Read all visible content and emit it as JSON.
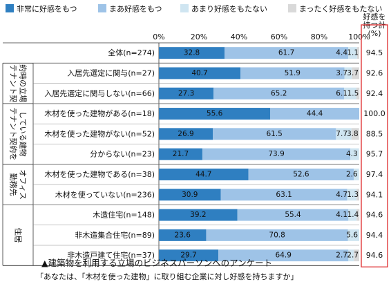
{
  "legend": [
    {
      "label": "非常に好感をもつ",
      "color": "#2f7fc1"
    },
    {
      "label": "まあ好感をもつ",
      "color": "#9ec3e7"
    },
    {
      "label": "あまり好感をもたない",
      "color": "#cfe5f1"
    },
    {
      "label": "まったく好感をもたない",
      "color": "#d9d9d9"
    }
  ],
  "sum_header": [
    "好感を",
    "持つ計",
    "(%)"
  ],
  "caption": {
    "title": "▲建築物を利用する立場のビジネスパーソンへのアンケート",
    "question": "「あなたは、「木材を使った建物」に取り組む企業に対し好感を持ちますか」"
  },
  "colors": {
    "very": "#2f7fc1",
    "somewhat": "#9ec3e7",
    "not_much": "#cfe5f1",
    "not_at_all": "#d9d9d9",
    "sum_box": "#e0383a"
  },
  "groups": [
    {
      "label": [
        "テナント契",
        "約時の立場"
      ],
      "from": 1,
      "to": 2
    },
    {
      "label": [
        "テナント契約を",
        "している建物"
      ],
      "from": 3,
      "to": 5
    },
    {
      "label": [
        "勤務先",
        "オフィス"
      ],
      "from": 6,
      "to": 7
    },
    {
      "label": [
        "住居"
      ],
      "from": 8,
      "to": 10
    }
  ],
  "chart_data": {
    "type": "bar",
    "orientation": "horizontal",
    "stacked": true,
    "x_ticks": [
      "0%",
      "20%",
      "40%",
      "60%",
      "80%",
      "100%"
    ],
    "xlim": [
      0,
      100
    ],
    "series_names": [
      "非常に好感をもつ",
      "まあ好感をもつ",
      "あまり好感をもたない",
      "まったく好感をもたない"
    ],
    "rows": [
      {
        "label": "全体(n=274)",
        "values": [
          32.8,
          61.7,
          4.4,
          1.1
        ],
        "labels": [
          "32.8",
          "61.7",
          "4.4",
          "1.1"
        ],
        "sum": "94.5"
      },
      {
        "label": "入居先選定に関与(n=27)",
        "values": [
          40.7,
          51.9,
          3.7,
          3.7
        ],
        "labels": [
          "40.7",
          "51.9",
          "3.7",
          "3.7"
        ],
        "sum": "92.6"
      },
      {
        "label": "入居先選定に関与しない(n=66)",
        "values": [
          27.3,
          65.2,
          6.1,
          1.5
        ],
        "labels": [
          "27.3",
          "65.2",
          "6.1",
          "1.5"
        ],
        "sum": "92.4"
      },
      {
        "label": "木材を使った建物がある(n=18)",
        "values": [
          55.6,
          44.4,
          0,
          0
        ],
        "labels": [
          "55.6",
          "44.4",
          "",
          ""
        ],
        "sum": "100.0"
      },
      {
        "label": "木材を使った建物がない(n=52)",
        "values": [
          26.9,
          61.5,
          7.7,
          3.8
        ],
        "labels": [
          "26.9",
          "61.5",
          "7.7",
          "3.8"
        ],
        "sum": "88.5"
      },
      {
        "label": "分からない(n=23)",
        "values": [
          21.7,
          73.9,
          4.3,
          0
        ],
        "labels": [
          "21.7",
          "73.9",
          "4.3",
          ""
        ],
        "sum": "95.7"
      },
      {
        "label": "木材を使った建物である(n=38)",
        "values": [
          44.7,
          52.6,
          2.6,
          0
        ],
        "labels": [
          "44.7",
          "52.6",
          "2.6",
          ""
        ],
        "sum": "97.4"
      },
      {
        "label": "木材を使っていない(n=236)",
        "values": [
          30.9,
          63.1,
          4.7,
          1.3
        ],
        "labels": [
          "30.9",
          "63.1",
          "4.7",
          "1.3"
        ],
        "sum": "94.1"
      },
      {
        "label": "木造住宅(n=148)",
        "values": [
          39.2,
          55.4,
          4.1,
          1.4
        ],
        "labels": [
          "39.2",
          "55.4",
          "4.1",
          "1.4"
        ],
        "sum": "94.6"
      },
      {
        "label": "非木造集合住宅(n=89)",
        "values": [
          23.6,
          70.8,
          5.6,
          0
        ],
        "labels": [
          "23.6",
          "70.8",
          "5.6",
          ""
        ],
        "sum": "94.4"
      },
      {
        "label": "非木造戸建て住宅(n=37)",
        "values": [
          29.7,
          64.9,
          2.7,
          2.7
        ],
        "labels": [
          "29.7",
          "64.9",
          "2.7",
          "2.7"
        ],
        "sum": "94.6"
      }
    ]
  }
}
